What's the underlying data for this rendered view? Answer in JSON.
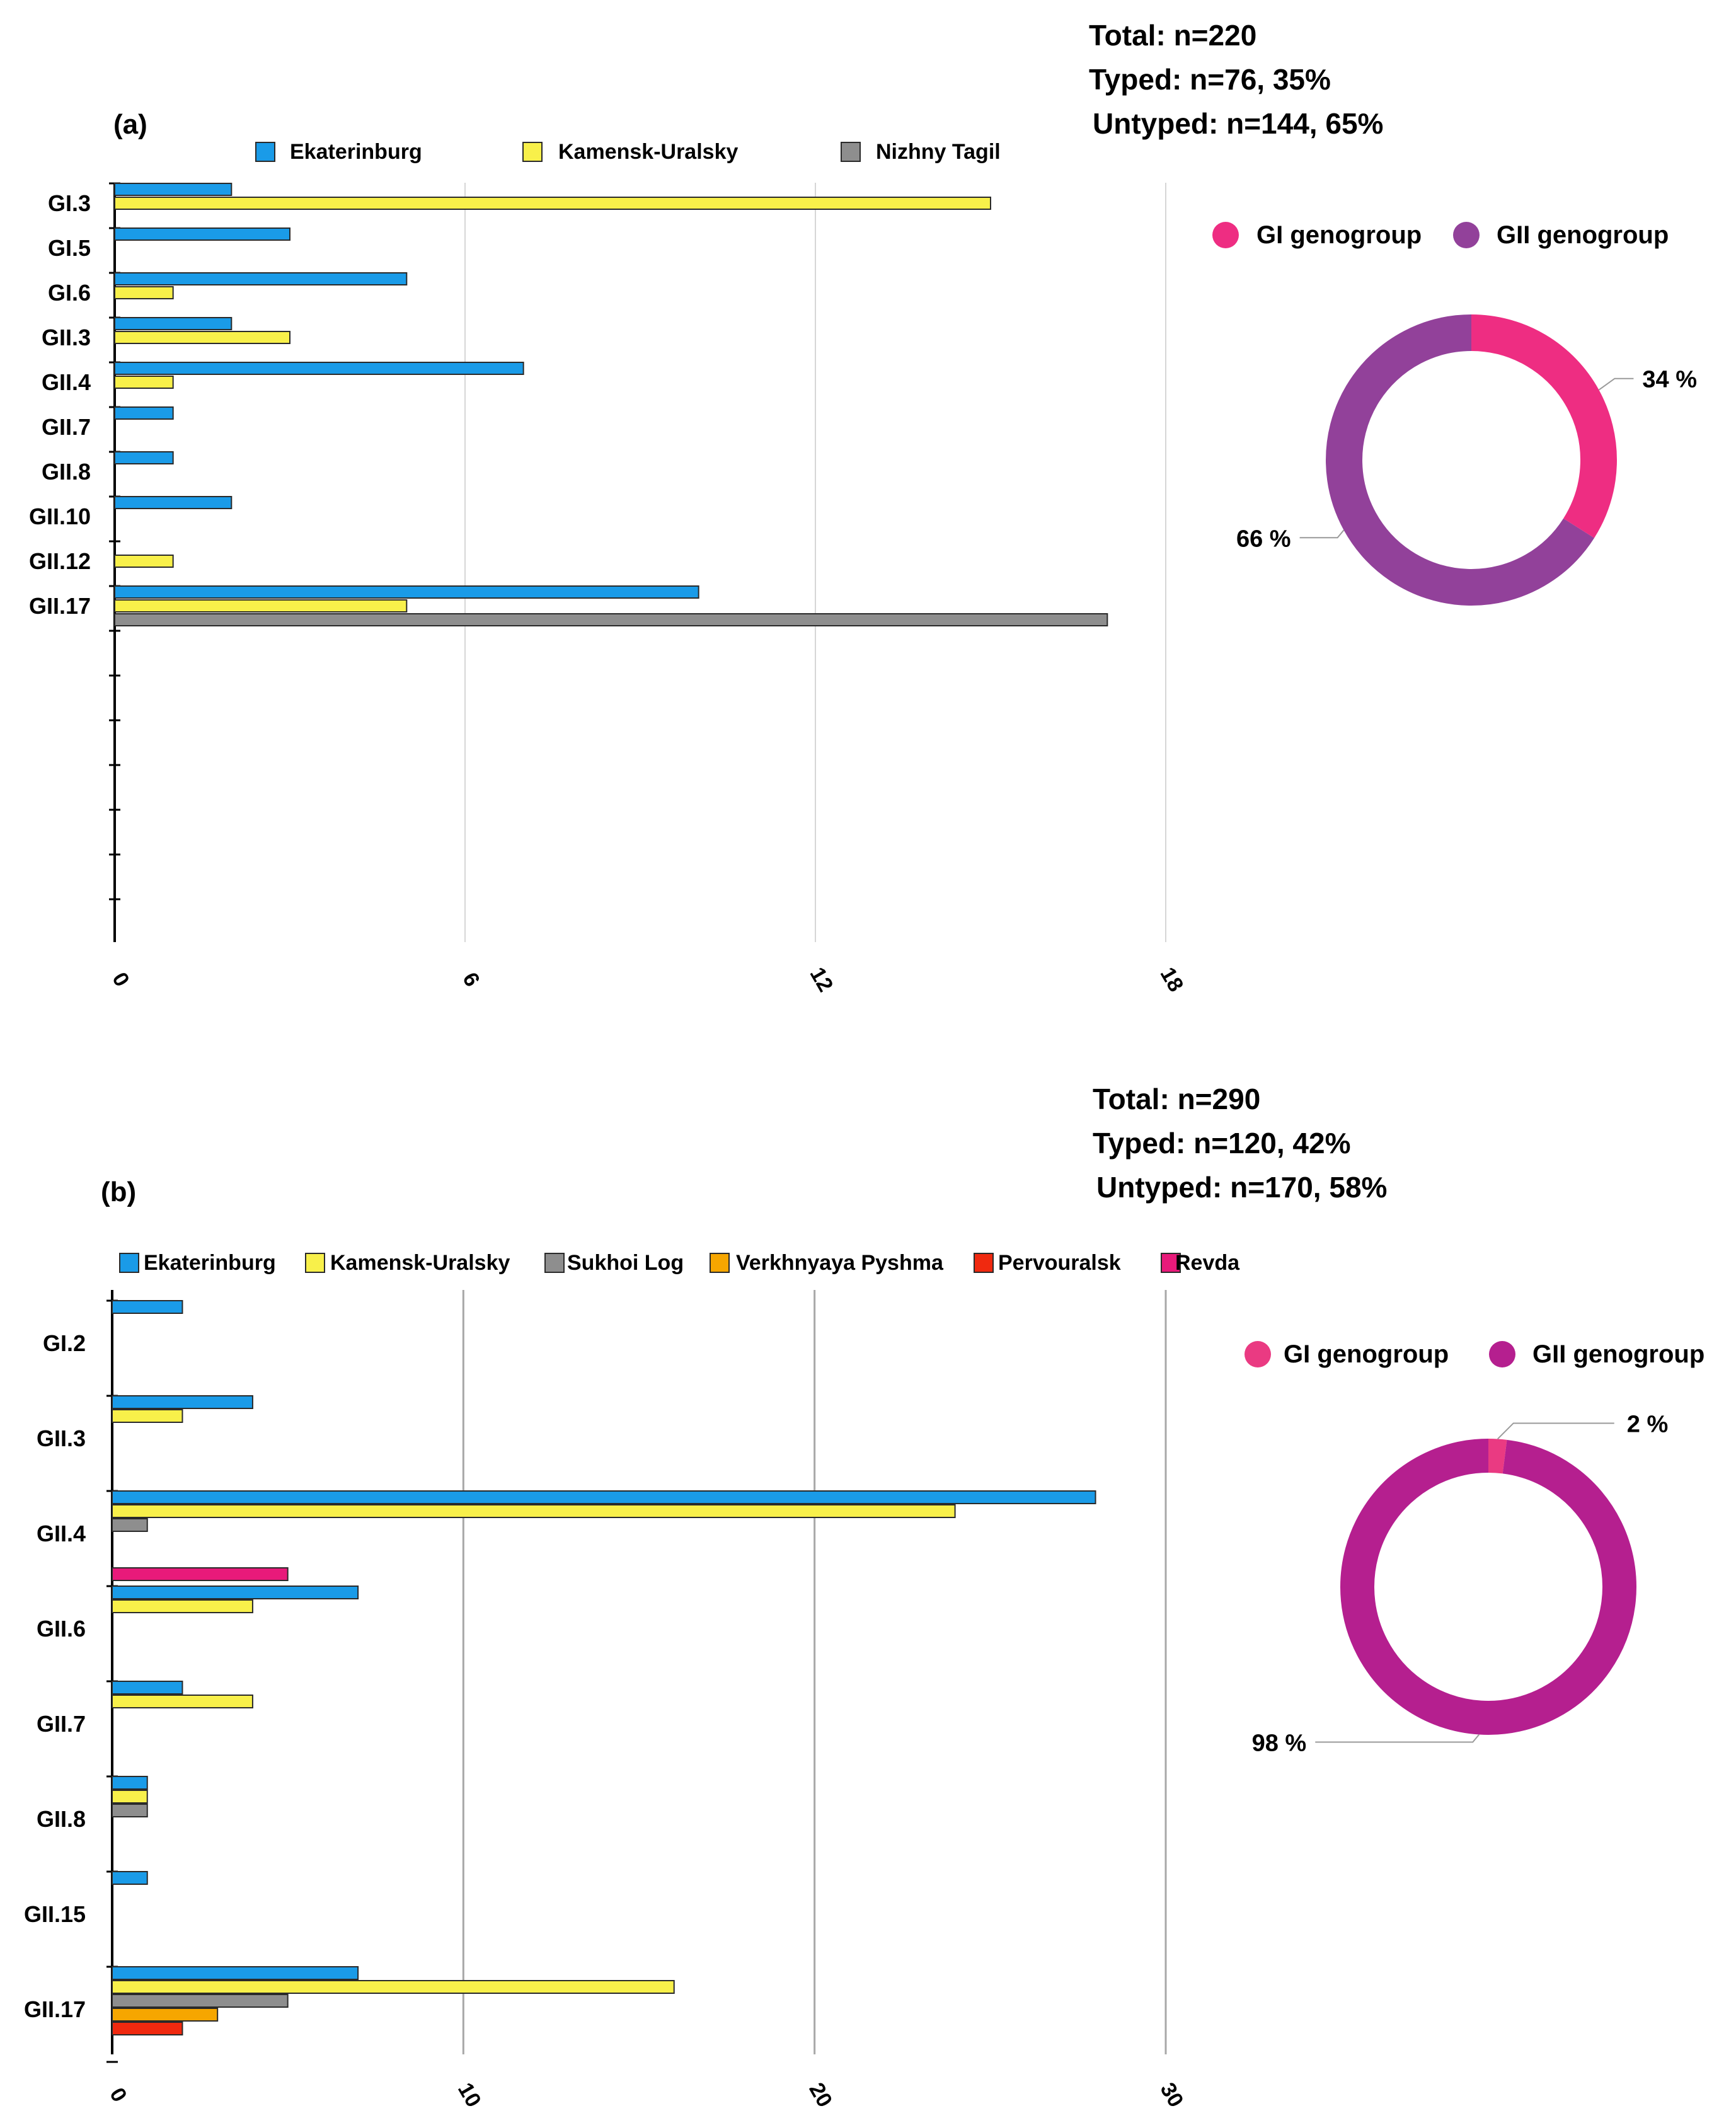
{
  "chart_data": [
    {
      "panel": "(a)",
      "type": "bar",
      "orientation": "horizontal",
      "summary": [
        "Total: n=220",
        "Typed: n=76, 35%",
        "Untyped: n=144, 65%"
      ],
      "categories": [
        "GI.3",
        "GI.5",
        "GI.6",
        "GII.3",
        "GII.4",
        "GII.7",
        "GII.8",
        "GII.10",
        "GII.12",
        "GII.17"
      ],
      "series": [
        {
          "name": "Ekaterinburg",
          "color": "#1a9be8",
          "values": [
            2,
            3,
            5,
            2,
            7,
            1,
            1,
            2,
            0,
            10
          ]
        },
        {
          "name": "Kamensk-Uralsky",
          "color": "#f8f04a",
          "values": [
            15,
            0,
            1,
            3,
            1,
            0,
            0,
            0,
            1,
            5
          ]
        },
        {
          "name": "Nizhny Tagil",
          "color": "#8e8e8e",
          "values": [
            0,
            0,
            0,
            0,
            0,
            0,
            0,
            0,
            0,
            17
          ]
        }
      ],
      "xlim": [
        0,
        18
      ],
      "xticks": [
        "0",
        "6",
        "12",
        "18"
      ],
      "legend": "top",
      "donut": {
        "type": "pie",
        "legend": [
          {
            "name": "GI genogroup",
            "color": "#ee2d82"
          },
          {
            "name": "GII genogroup",
            "color": "#92419a"
          }
        ],
        "slices": [
          {
            "name": "GI genogroup",
            "value": 34,
            "label": "34 %",
            "color": "#ee2d82"
          },
          {
            "name": "GII genogroup",
            "value": 66,
            "label": "66 %",
            "color": "#92419a"
          }
        ]
      }
    },
    {
      "panel": "(b)",
      "type": "bar",
      "orientation": "horizontal",
      "summary": [
        "Total: n=290",
        "Typed: n=120, 42%",
        "Untyped: n=170, 58%"
      ],
      "categories": [
        "GI.2",
        "GII.3",
        "GII.4",
        "GII.6",
        "GII.7",
        "GII.8",
        "GII.15",
        "GII.17"
      ],
      "series": [
        {
          "name": "Ekaterinburg",
          "color": "#1a9be8",
          "values": [
            2,
            4,
            28,
            7,
            2,
            1,
            1,
            7
          ]
        },
        {
          "name": "Kamensk-Uralsky",
          "color": "#f8f04a",
          "values": [
            0,
            2,
            24,
            4,
            4,
            1,
            0,
            16
          ]
        },
        {
          "name": "Sukhoi Log",
          "color": "#8e8e8e",
          "values": [
            0,
            0,
            1,
            0,
            0,
            1,
            0,
            5
          ]
        },
        {
          "name": "Verkhnyaya Pyshma",
          "color": "#f6a600",
          "values": [
            0,
            0,
            0,
            0,
            0,
            0,
            0,
            3
          ]
        },
        {
          "name": "Pervouralsk",
          "color": "#f0290f",
          "values": [
            0,
            0,
            0,
            0,
            0,
            0,
            0,
            2
          ]
        },
        {
          "name": "Revda",
          "color": "#e81a7a",
          "values": [
            0,
            0,
            0,
            5,
            0,
            0,
            0,
            0
          ]
        }
      ],
      "xlim": [
        0,
        30
      ],
      "xticks": [
        "0",
        "10",
        "20",
        "30"
      ],
      "legend": "top",
      "donut": {
        "type": "pie",
        "legend": [
          {
            "name": "GI genogroup",
            "color": "#ea3a82"
          },
          {
            "name": "GII genogroup",
            "color": "#b51f8f"
          }
        ],
        "slices": [
          {
            "name": "GI genogroup",
            "value": 2,
            "label": "2 %",
            "color": "#ea3a82"
          },
          {
            "name": "GII genogroup",
            "value": 98,
            "label": "98 %",
            "color": "#b51f8f"
          }
        ]
      }
    }
  ]
}
